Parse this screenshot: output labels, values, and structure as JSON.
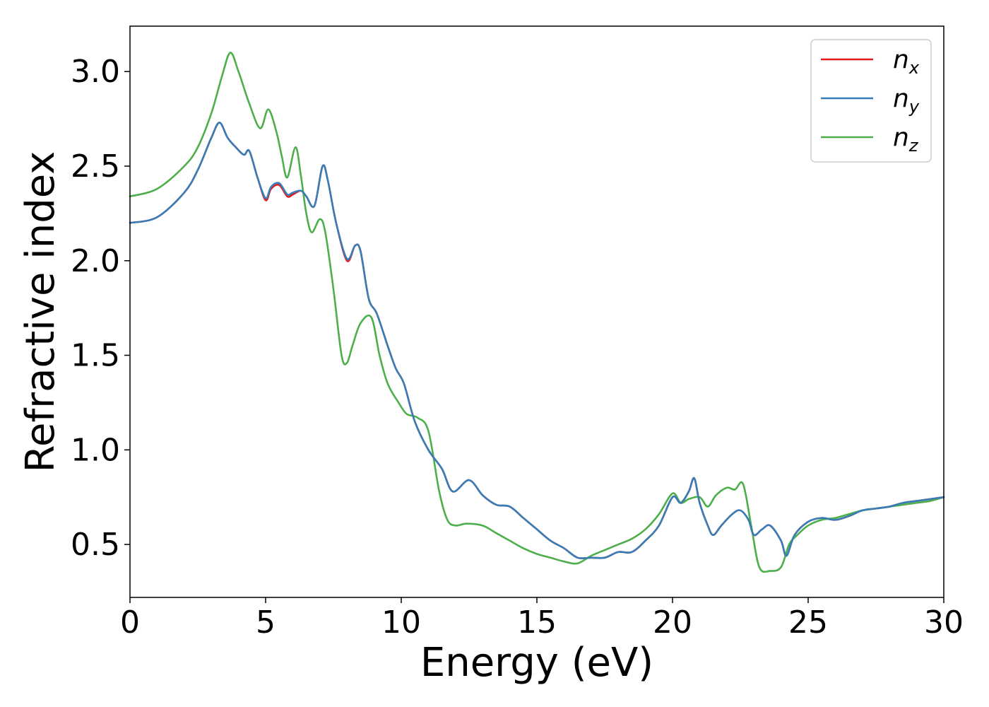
{
  "chart_data": {
    "type": "line",
    "xlabel": "Energy (eV)",
    "ylabel": "Refractive index",
    "xlim": [
      0,
      30
    ],
    "ylim": [
      0.22,
      3.24
    ],
    "xticks": [
      "0",
      "5",
      "10",
      "15",
      "20",
      "25",
      "30"
    ],
    "yticks": [
      "0.5",
      "1.0",
      "1.5",
      "2.0",
      "2.5",
      "3.0"
    ],
    "grid": false,
    "legend_position": "top-right",
    "series": [
      {
        "name": "n",
        "subscript": "x",
        "color": "#e41a1c",
        "x": [
          0,
          1,
          2,
          2.5,
          3,
          3.3,
          3.6,
          3.9,
          4.2,
          4.4,
          4.7,
          5.0,
          5.2,
          5.5,
          5.8,
          6.0,
          6.3,
          6.5,
          6.8,
          7.1,
          7.3,
          7.6,
          8.0,
          8.3,
          8.5,
          8.8,
          9.1,
          9.5,
          9.8,
          10.1,
          10.5,
          11.0,
          11.5,
          11.9,
          12.5,
          13.0,
          13.5,
          14.0,
          14.5,
          15.0,
          15.5,
          16.0,
          16.5,
          17.0,
          17.5,
          18.0,
          18.5,
          19.0,
          19.5,
          20.0,
          20.3,
          20.6,
          20.8,
          21.0,
          21.3,
          21.5,
          21.8,
          22.2,
          22.5,
          22.8,
          23.0,
          23.3,
          23.6,
          24.0,
          24.2,
          24.5,
          25.0,
          25.5,
          26.0,
          26.5,
          27.0,
          27.5,
          28.0,
          28.5,
          29.0,
          29.5,
          30.0
        ],
        "y": [
          2.2,
          2.23,
          2.36,
          2.48,
          2.65,
          2.73,
          2.65,
          2.6,
          2.56,
          2.58,
          2.44,
          2.32,
          2.38,
          2.4,
          2.34,
          2.35,
          2.37,
          2.34,
          2.29,
          2.5,
          2.42,
          2.2,
          2.0,
          2.08,
          2.05,
          1.8,
          1.72,
          1.55,
          1.43,
          1.35,
          1.15,
          1.0,
          0.9,
          0.78,
          0.84,
          0.76,
          0.71,
          0.7,
          0.64,
          0.58,
          0.52,
          0.48,
          0.43,
          0.43,
          0.43,
          0.46,
          0.46,
          0.52,
          0.6,
          0.75,
          0.72,
          0.78,
          0.85,
          0.72,
          0.6,
          0.55,
          0.6,
          0.66,
          0.68,
          0.63,
          0.55,
          0.58,
          0.6,
          0.52,
          0.44,
          0.55,
          0.62,
          0.64,
          0.63,
          0.65,
          0.68,
          0.69,
          0.7,
          0.72,
          0.73,
          0.74,
          0.75
        ]
      },
      {
        "name": "n",
        "subscript": "y",
        "color": "#377eb8",
        "x": [
          0,
          1,
          2,
          2.5,
          3,
          3.3,
          3.6,
          3.9,
          4.2,
          4.4,
          4.7,
          5.0,
          5.2,
          5.5,
          5.8,
          6.0,
          6.3,
          6.5,
          6.8,
          7.1,
          7.3,
          7.6,
          8.0,
          8.3,
          8.5,
          8.8,
          9.1,
          9.5,
          9.8,
          10.1,
          10.5,
          11.0,
          11.5,
          11.9,
          12.5,
          13.0,
          13.5,
          14.0,
          14.5,
          15.0,
          15.5,
          16.0,
          16.5,
          17.0,
          17.5,
          18.0,
          18.5,
          19.0,
          19.5,
          20.0,
          20.3,
          20.6,
          20.8,
          21.0,
          21.3,
          21.5,
          21.8,
          22.2,
          22.5,
          22.8,
          23.0,
          23.3,
          23.6,
          24.0,
          24.2,
          24.5,
          25.0,
          25.5,
          26.0,
          26.5,
          27.0,
          27.5,
          28.0,
          28.5,
          29.0,
          29.5,
          30.0
        ],
        "y": [
          2.2,
          2.23,
          2.36,
          2.48,
          2.65,
          2.73,
          2.65,
          2.6,
          2.56,
          2.58,
          2.44,
          2.33,
          2.39,
          2.41,
          2.35,
          2.36,
          2.37,
          2.34,
          2.29,
          2.5,
          2.42,
          2.2,
          2.01,
          2.08,
          2.05,
          1.8,
          1.72,
          1.55,
          1.43,
          1.35,
          1.15,
          1.0,
          0.9,
          0.78,
          0.84,
          0.76,
          0.71,
          0.7,
          0.64,
          0.58,
          0.52,
          0.48,
          0.43,
          0.43,
          0.43,
          0.46,
          0.46,
          0.52,
          0.6,
          0.75,
          0.72,
          0.78,
          0.85,
          0.72,
          0.6,
          0.55,
          0.6,
          0.66,
          0.68,
          0.63,
          0.55,
          0.58,
          0.6,
          0.52,
          0.44,
          0.55,
          0.62,
          0.64,
          0.63,
          0.65,
          0.68,
          0.69,
          0.7,
          0.72,
          0.73,
          0.74,
          0.75
        ]
      },
      {
        "name": "n",
        "subscript": "z",
        "color": "#4daf4a",
        "x": [
          0,
          1,
          2,
          2.5,
          3,
          3.4,
          3.7,
          4.0,
          4.4,
          4.8,
          5.1,
          5.4,
          5.6,
          5.8,
          6.1,
          6.3,
          6.5,
          6.7,
          7.0,
          7.2,
          7.5,
          7.8,
          8.0,
          8.2,
          8.5,
          8.9,
          9.2,
          9.5,
          9.9,
          10.2,
          10.6,
          11.0,
          11.4,
          11.7,
          12.0,
          12.4,
          13.0,
          13.5,
          14.0,
          14.5,
          15.0,
          15.5,
          16.0,
          16.5,
          17.0,
          17.5,
          18.0,
          18.5,
          19.0,
          19.5,
          20.0,
          20.3,
          20.6,
          21.0,
          21.3,
          21.6,
          22.0,
          22.3,
          22.6,
          22.9,
          23.2,
          23.6,
          24.0,
          24.3,
          24.6,
          25.0,
          25.5,
          26.0,
          26.5,
          27.0,
          27.5,
          28.0,
          28.5,
          29.0,
          29.5,
          30.0
        ],
        "y": [
          2.34,
          2.38,
          2.5,
          2.6,
          2.78,
          2.98,
          3.1,
          3.0,
          2.83,
          2.7,
          2.8,
          2.68,
          2.55,
          2.44,
          2.6,
          2.45,
          2.25,
          2.15,
          2.22,
          2.15,
          1.85,
          1.5,
          1.46,
          1.55,
          1.67,
          1.7,
          1.5,
          1.35,
          1.25,
          1.19,
          1.17,
          1.1,
          0.78,
          0.63,
          0.6,
          0.61,
          0.6,
          0.56,
          0.52,
          0.48,
          0.45,
          0.43,
          0.41,
          0.4,
          0.44,
          0.47,
          0.5,
          0.53,
          0.58,
          0.66,
          0.77,
          0.72,
          0.74,
          0.75,
          0.7,
          0.76,
          0.8,
          0.79,
          0.82,
          0.6,
          0.38,
          0.36,
          0.38,
          0.5,
          0.55,
          0.6,
          0.63,
          0.64,
          0.66,
          0.68,
          0.69,
          0.7,
          0.71,
          0.72,
          0.73,
          0.75
        ]
      }
    ]
  }
}
